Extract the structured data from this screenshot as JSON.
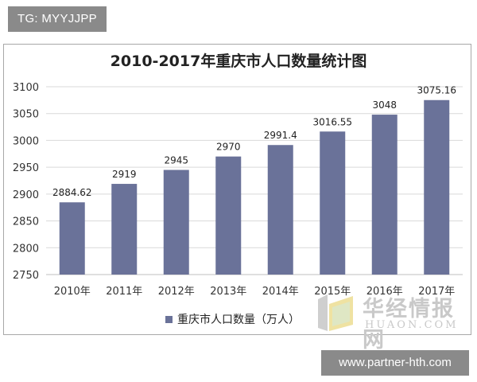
{
  "header_tag": "TG: MYYJJPP",
  "footer_tag": "www.partner-hth.com",
  "watermark": {
    "brand": "华经情报网",
    "domain": "HUAON.COM"
  },
  "colors": {
    "bar": "#6a7299",
    "grid": "#d9d9d9",
    "axis": "#bfbfbf"
  },
  "chart_data": {
    "type": "bar",
    "title": "2010-2017年重庆市人口数量统计图",
    "categories": [
      "2010年",
      "2011年",
      "2012年",
      "2013年",
      "2014年",
      "2015年",
      "2016年",
      "2017年"
    ],
    "series": [
      {
        "name": "重庆市人口数量（万人）",
        "values": [
          2884.62,
          2919,
          2945,
          2970,
          2991.4,
          3016.55,
          3048,
          3075.16
        ],
        "labels": [
          "2884.62",
          "2919",
          "2945",
          "2970",
          "2991.4",
          "3016.55",
          "3048",
          "3075.16"
        ]
      }
    ],
    "ylim": [
      2750,
      3100
    ],
    "yticks": [
      2750,
      2800,
      2850,
      2900,
      2950,
      3000,
      3050,
      3100
    ],
    "grid": true,
    "legend": "bottom"
  }
}
